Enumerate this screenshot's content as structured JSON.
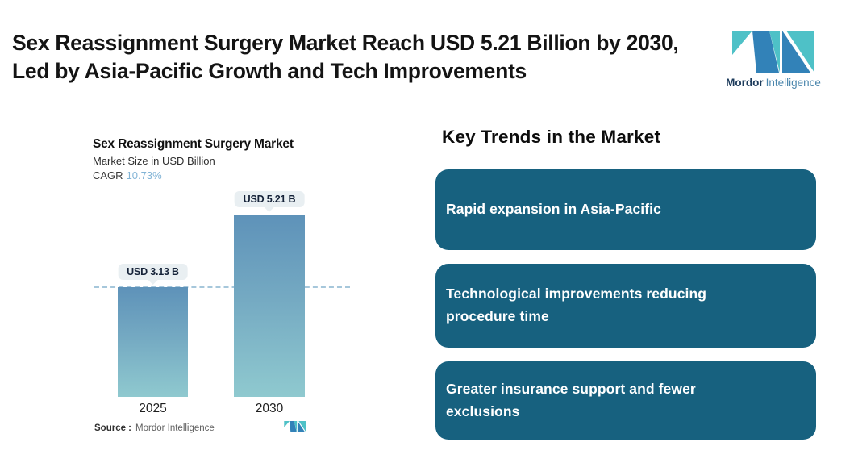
{
  "header": {
    "title": "Sex Reassignment Surgery Market Reach USD 5.21 Billion by 2030, Led by Asia-Pacific Growth and Tech Improvements"
  },
  "brand": {
    "name_primary": "Mordor",
    "name_secondary": "Intelligence",
    "logo_icon": "mordor-m-mark"
  },
  "chart_data": {
    "type": "bar",
    "title": "Sex Reassignment Surgery Market",
    "subtitle": "Market Size in USD Billion",
    "cagr_label": "CAGR",
    "cagr_value": "10.73%",
    "categories": [
      "2025",
      "2030"
    ],
    "values": [
      3.13,
      5.21
    ],
    "value_labels": [
      "USD 3.13 B",
      "USD 5.21 B"
    ],
    "ylabel": "Market Size in USD Billion",
    "ylim": [
      0,
      5.8
    ],
    "grid": false,
    "reference_line_value": 3.13,
    "source_label": "Source :",
    "source_value": "Mordor Intelligence"
  },
  "trends": {
    "heading": "Key Trends in the Market",
    "items": [
      "Rapid expansion in Asia-Pacific",
      "Technological improvements reducing procedure time",
      "Greater insurance support and fewer exclusions"
    ]
  },
  "colors": {
    "logo_blue": "#3282b8",
    "logo_teal": "#4ec1c7",
    "trend_box": "#17617f",
    "bar_gradient_top": "#5e92b9",
    "bar_gradient_bottom": "#8fc9cf",
    "dashed_line": "#a6c7db",
    "cagr_value": "#82b4d6",
    "pill_bg": "#e9eff2",
    "pill_text": "#152238"
  }
}
